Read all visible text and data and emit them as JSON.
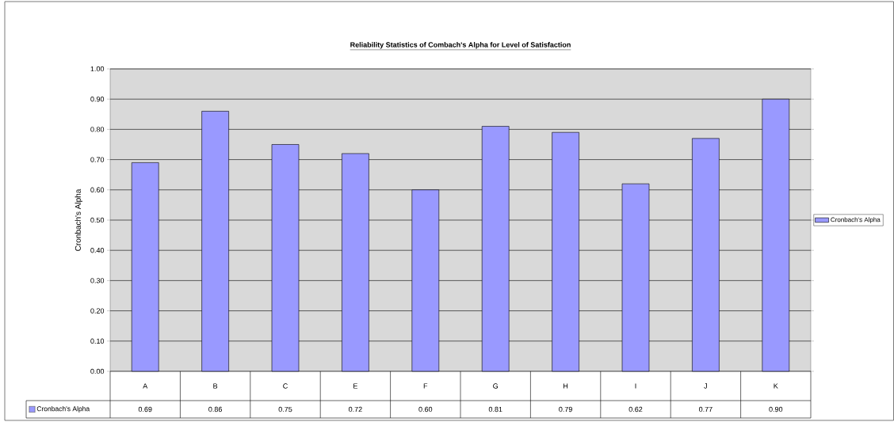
{
  "chart_data": {
    "type": "bar",
    "title": "Reliability Statistics of Combach's Alpha for Level of Satisfaction",
    "ylabel": "Cronbach's Alpha",
    "categories": [
      "A",
      "B",
      "C",
      "E",
      "F",
      "G",
      "H",
      "I",
      "J",
      "K"
    ],
    "series": [
      {
        "name": "Cronbach's Alpha",
        "color": "#9999ff",
        "values": [
          0.69,
          0.86,
          0.75,
          0.72,
          0.6,
          0.81,
          0.79,
          0.62,
          0.77,
          0.9
        ],
        "value_labels": [
          "0.69",
          "0.86",
          "0.75",
          "0.72",
          "0.60",
          "0.81",
          "0.79",
          "0.62",
          "0.77",
          "0.90"
        ]
      }
    ],
    "ylim": [
      0,
      1
    ],
    "yticks": [
      {
        "value": 0,
        "label": "0.00"
      },
      {
        "value": 0.1,
        "label": "0.10"
      },
      {
        "value": 0.2,
        "label": "0.20"
      },
      {
        "value": 0.3,
        "label": "0.30"
      },
      {
        "value": 0.4,
        "label": "0.40"
      },
      {
        "value": 0.5,
        "label": "0.50"
      },
      {
        "value": 0.6,
        "label": "0.60"
      },
      {
        "value": 0.7,
        "label": "0.70"
      },
      {
        "value": 0.8,
        "label": "0.80"
      },
      {
        "value": 0.9,
        "label": "0.90"
      },
      {
        "value": 1.0,
        "label": "1.00"
      }
    ],
    "grid": "y",
    "legend": "right"
  }
}
